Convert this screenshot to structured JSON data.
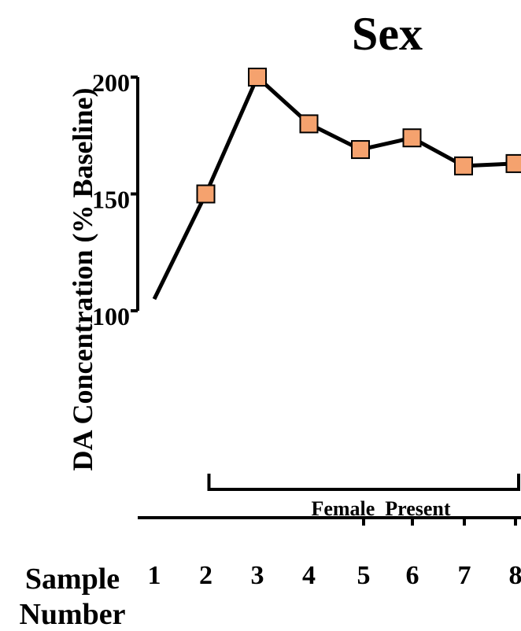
{
  "chart_data": {
    "type": "line",
    "title": "Sex",
    "ylabel": "DA Concentration (% Baseline)",
    "xlabel_line1": "Sample",
    "xlabel_line2": "Number",
    "yticks": [
      100,
      150,
      200
    ],
    "ylim": [
      100,
      200
    ],
    "x": [
      1,
      2,
      3,
      4,
      5,
      6,
      7,
      8
    ],
    "series": [
      {
        "values": [
          105,
          150,
          200,
          180,
          169,
          174,
          162,
          163
        ]
      }
    ],
    "bracket_label": "Female  Present",
    "bracket_range": [
      2,
      8
    ],
    "marker_color": "#F5A26E",
    "line_color": "#000000"
  }
}
